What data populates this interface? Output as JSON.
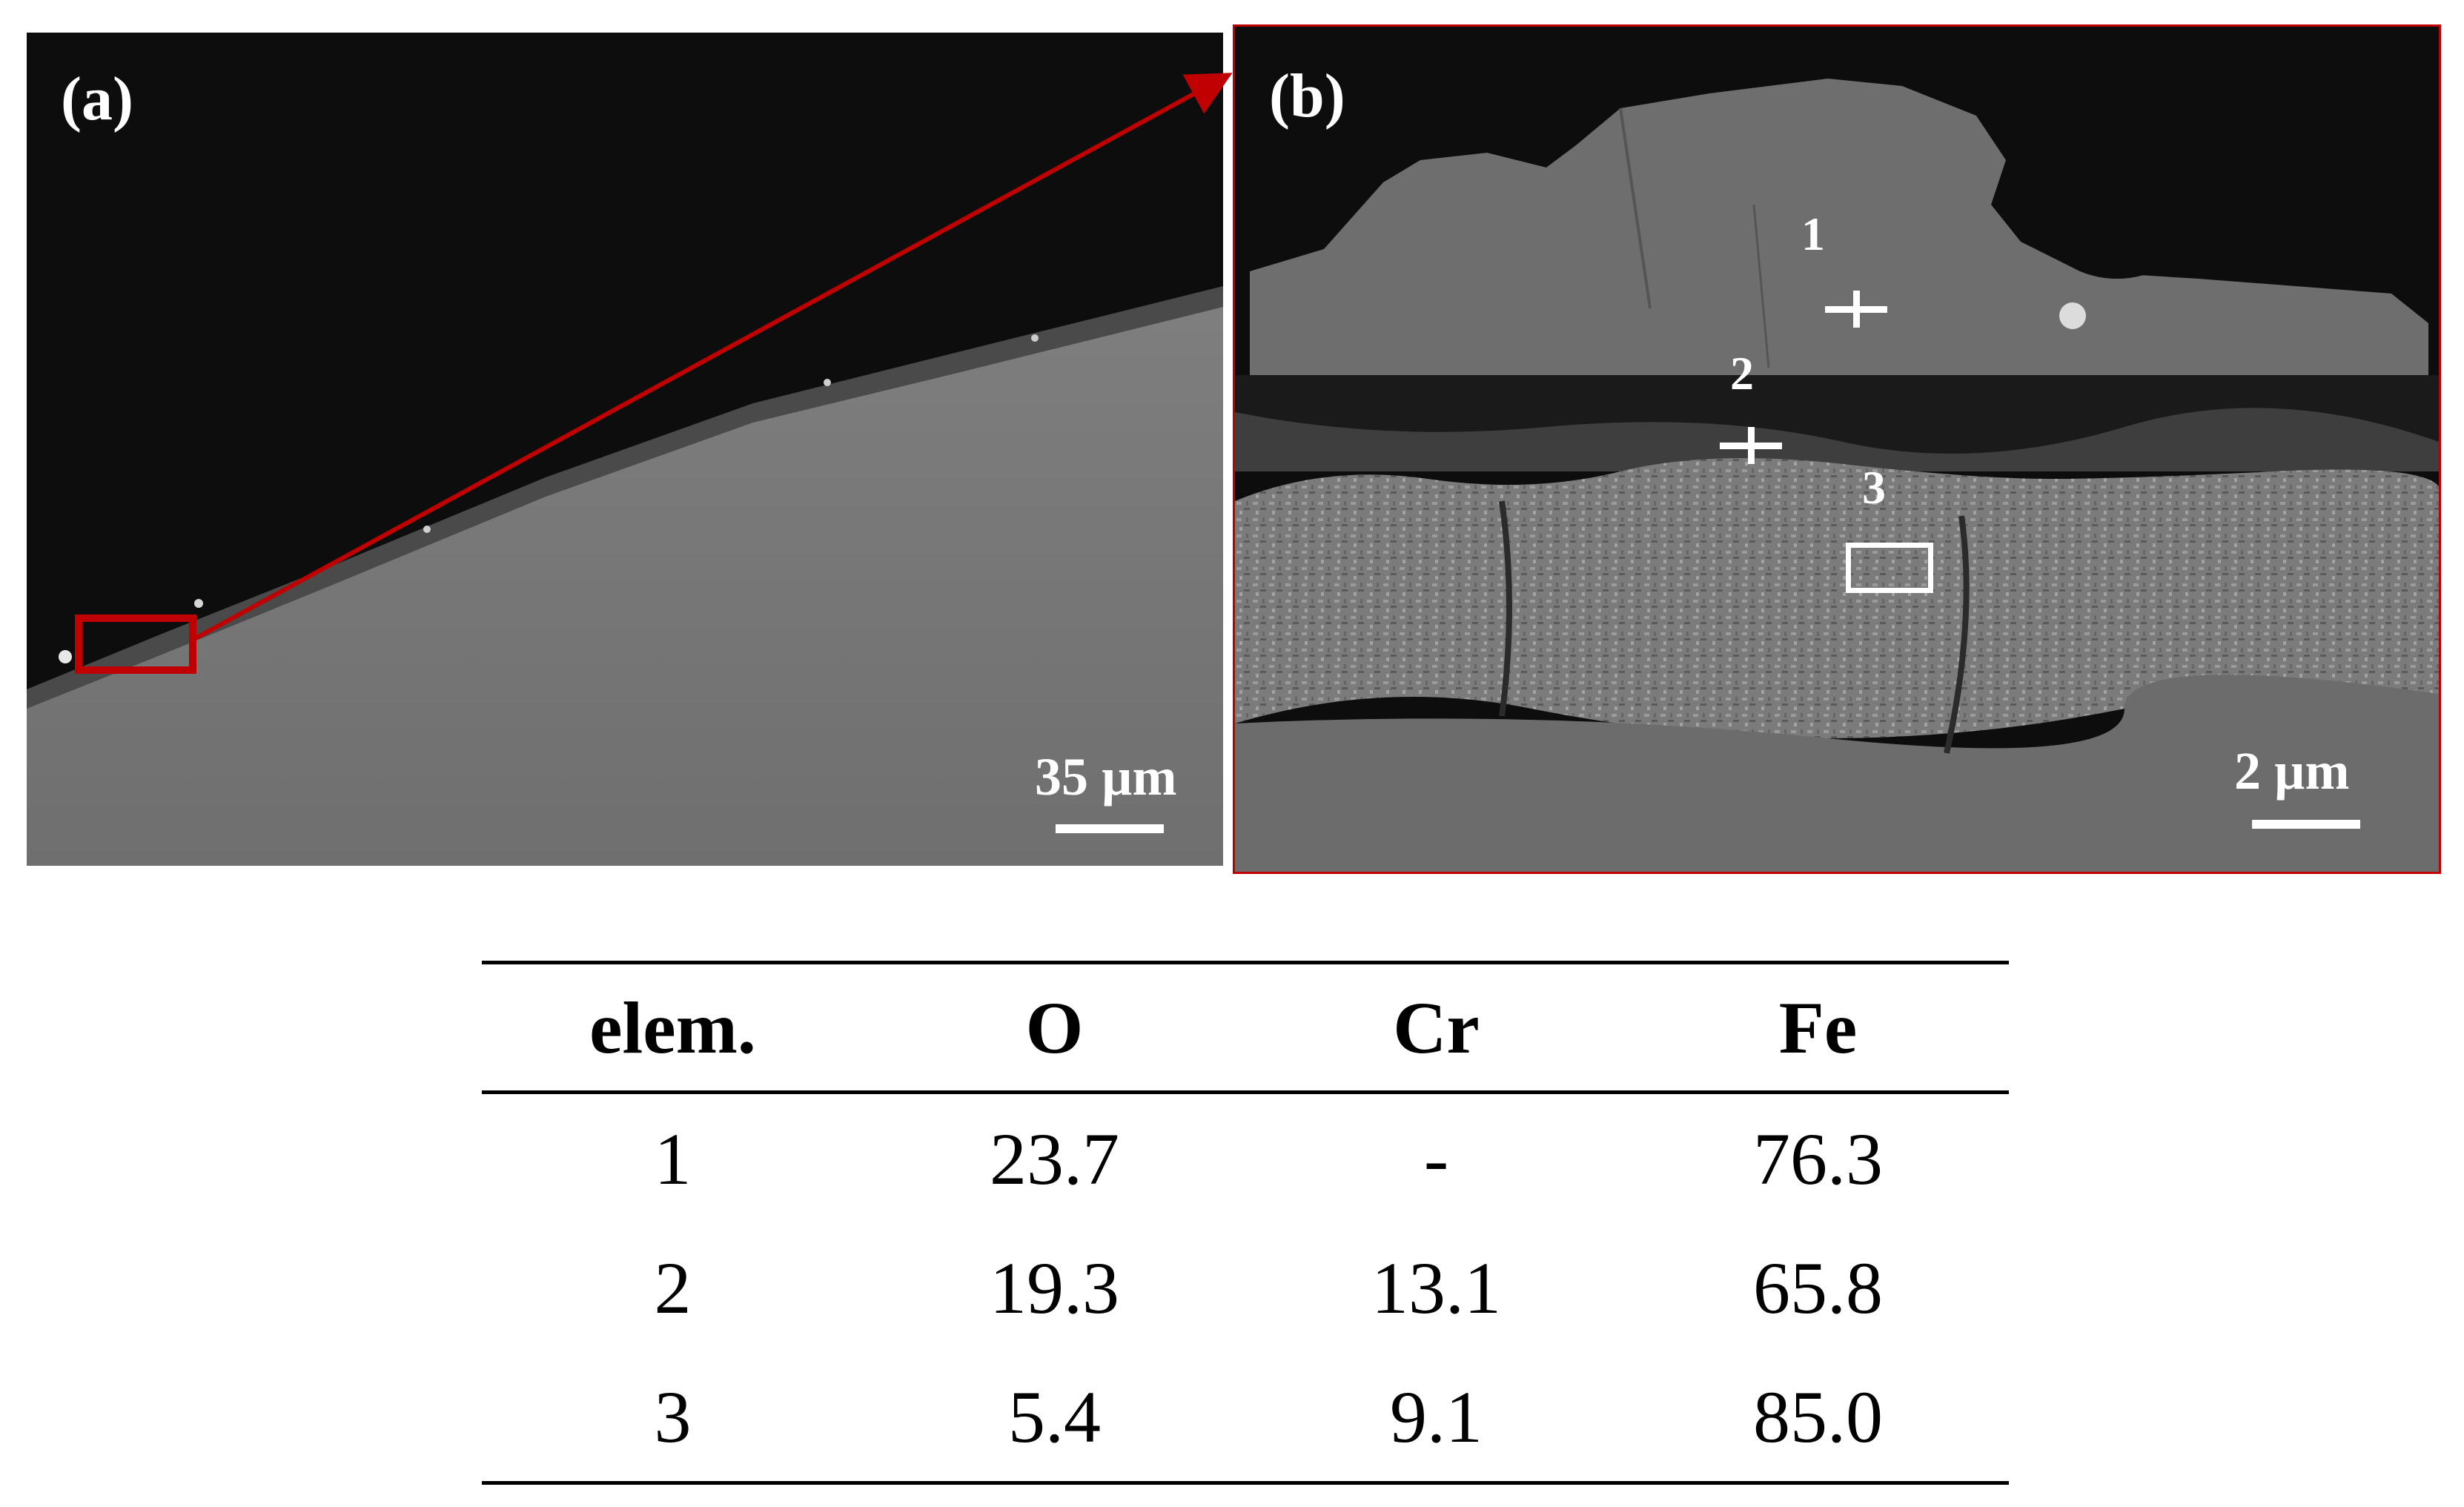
{
  "panel_a": {
    "label": "(a)",
    "scale": "35 µm"
  },
  "panel_b": {
    "label": "(b)",
    "scale": "2 µm",
    "markers": [
      "1",
      "2",
      "3"
    ]
  },
  "colors": {
    "highlight": "#c00000",
    "background": "#0d0d0d",
    "bulk": "#7a7a7a"
  },
  "table": {
    "headers": [
      "elem.",
      "O",
      "Cr",
      "Fe"
    ],
    "rows": [
      [
        "1",
        "23.7",
        "-",
        "76.3"
      ],
      [
        "2",
        "19.3",
        "13.1",
        "65.8"
      ],
      [
        "3",
        "5.4",
        "9.1",
        "85.0"
      ]
    ]
  }
}
